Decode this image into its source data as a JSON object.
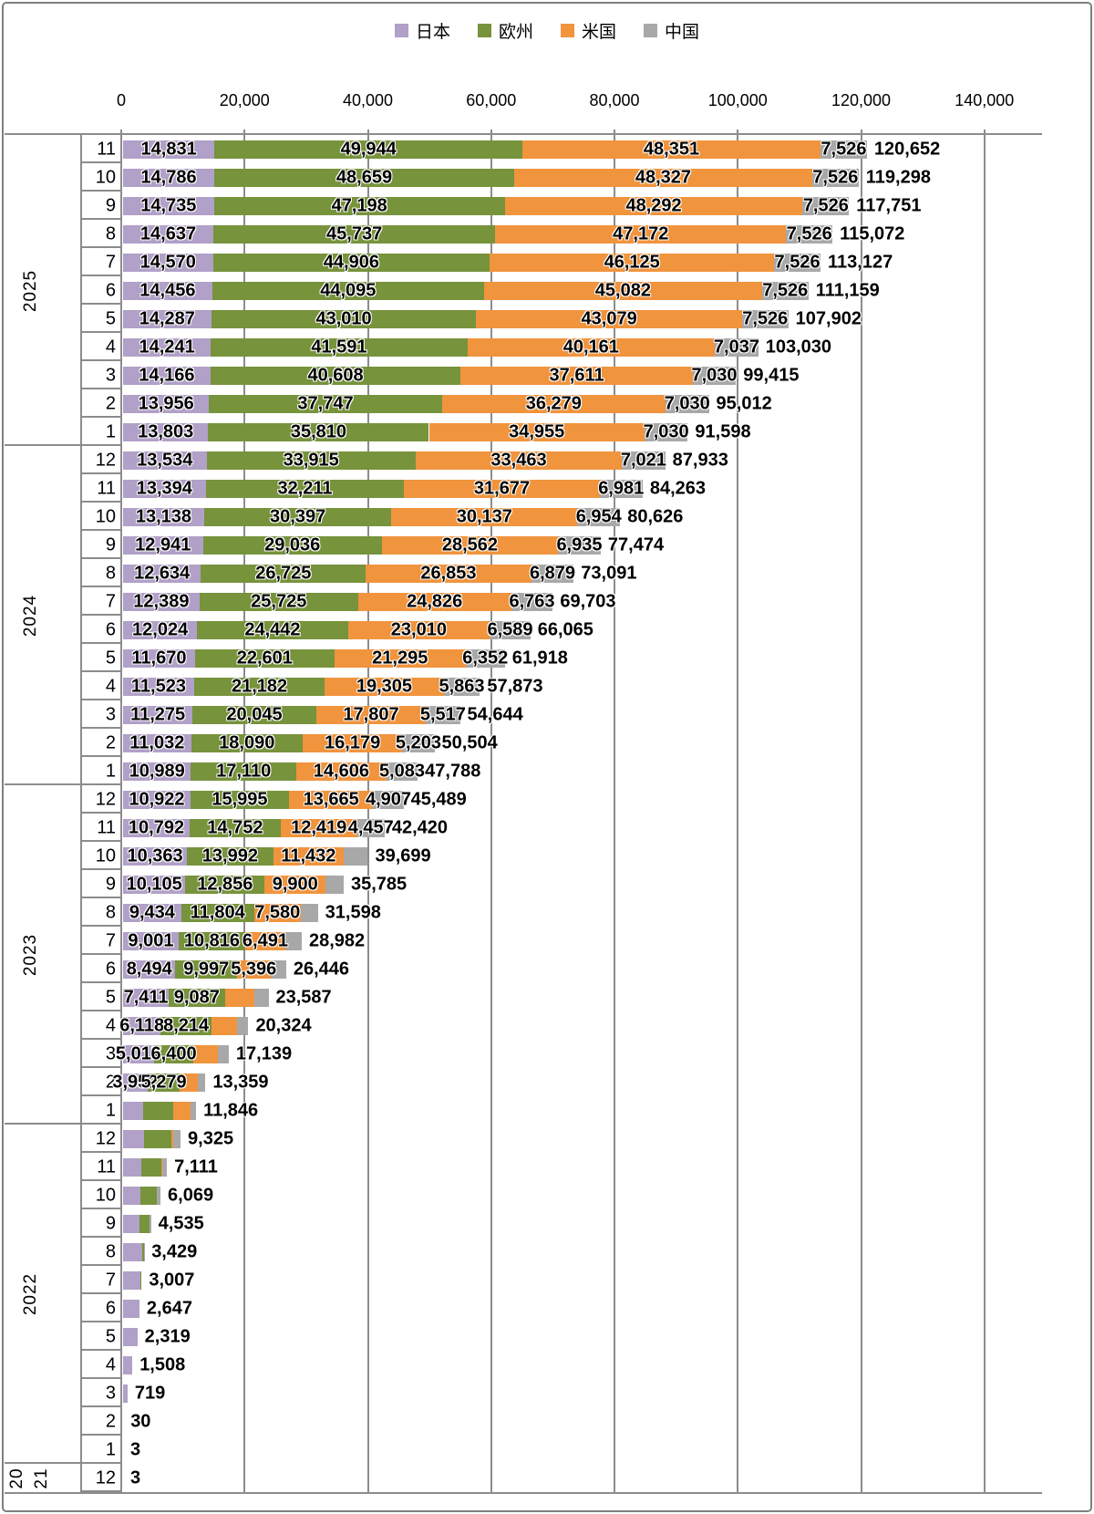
{
  "page": {
    "background": "#ffffff",
    "border_color": "#7f7f7f"
  },
  "legend": {
    "items": [
      {
        "label": "日本",
        "color": "#b1a0c7"
      },
      {
        "label": "欧州",
        "color": "#77933c"
      },
      {
        "label": "米国",
        "color": "#f0943e"
      },
      {
        "label": "中国",
        "color": "#a9a8a8"
      }
    ]
  },
  "chart_data": {
    "type": "bar",
    "stacked": true,
    "orientation": "horizontal",
    "title": "",
    "legend_position": "top",
    "grid": true,
    "xlim": [
      0,
      140000
    ],
    "x_ticks": [
      "0",
      "20,000",
      "40,000",
      "60,000",
      "80,000",
      "100,000",
      "120,000",
      "140,000"
    ],
    "series_names": [
      "日本",
      "欧州",
      "米国",
      "中国"
    ],
    "series_colors": [
      "#b1a0c7",
      "#77933c",
      "#f0943e",
      "#a9a8a8"
    ],
    "groups": [
      {
        "year": "2025",
        "year_label_parts": [
          "2025"
        ],
        "rows": [
          {
            "month": "11",
            "values": [
              14831,
              49944,
              48351,
              7526
            ],
            "segment_labels": [
              "14,831",
              "49,944",
              "48,351",
              "7,526"
            ],
            "total_label": "120,652"
          },
          {
            "month": "10",
            "values": [
              14786,
              48659,
              48327,
              7526
            ],
            "segment_labels": [
              "14,786",
              "48,659",
              "48,327",
              "7,526"
            ],
            "total_label": "119,298"
          },
          {
            "month": "9",
            "values": [
              14735,
              47198,
              48292,
              7526
            ],
            "segment_labels": [
              "14,735",
              "47,198",
              "48,292",
              "7,526"
            ],
            "total_label": "117,751"
          },
          {
            "month": "8",
            "values": [
              14637,
              45737,
              47172,
              7526
            ],
            "segment_labels": [
              "14,637",
              "45,737",
              "47,172",
              "7,526"
            ],
            "total_label": "115,072"
          },
          {
            "month": "7",
            "values": [
              14570,
              44906,
              46125,
              7526
            ],
            "segment_labels": [
              "14,570",
              "44,906",
              "46,125",
              "7,526"
            ],
            "total_label": "113,127"
          },
          {
            "month": "6",
            "values": [
              14456,
              44095,
              45082,
              7526
            ],
            "segment_labels": [
              "14,456",
              "44,095",
              "45,082",
              "7,526"
            ],
            "total_label": "111,159"
          },
          {
            "month": "5",
            "values": [
              14287,
              43010,
              43079,
              7526
            ],
            "segment_labels": [
              "14,287",
              "43,010",
              "43,079",
              "7,526"
            ],
            "total_label": "107,902"
          },
          {
            "month": "4",
            "values": [
              14241,
              41591,
              40161,
              7037
            ],
            "segment_labels": [
              "14,241",
              "41,591",
              "40,161",
              "7,037"
            ],
            "total_label": "103,030"
          },
          {
            "month": "3",
            "values": [
              14166,
              40608,
              37611,
              7030
            ],
            "segment_labels": [
              "14,166",
              "40,608",
              "37,611",
              "7,030"
            ],
            "total_label": "99,415"
          },
          {
            "month": "2",
            "values": [
              13956,
              37747,
              36279,
              7030
            ],
            "segment_labels": [
              "13,956",
              "37,747",
              "36,279",
              "7,030"
            ],
            "total_label": "95,012"
          },
          {
            "month": "1",
            "values": [
              13803,
              35810,
              34955,
              7030
            ],
            "segment_labels": [
              "13,803",
              "35,810",
              "34,955",
              "7,030"
            ],
            "total_label": "91,598"
          }
        ]
      },
      {
        "year": "2024",
        "year_label_parts": [
          "2024"
        ],
        "rows": [
          {
            "month": "12",
            "values": [
              13534,
              33915,
              33463,
              7021
            ],
            "segment_labels": [
              "13,534",
              "33,915",
              "33,463",
              "7,021"
            ],
            "total_label": "87,933"
          },
          {
            "month": "11",
            "values": [
              13394,
              32211,
              31677,
              6981
            ],
            "segment_labels": [
              "13,394",
              "32,211",
              "31,677",
              "6,981"
            ],
            "total_label": "84,263"
          },
          {
            "month": "10",
            "values": [
              13138,
              30397,
              30137,
              6954
            ],
            "segment_labels": [
              "13,138",
              "30,397",
              "30,137",
              "6,954"
            ],
            "total_label": "80,626"
          },
          {
            "month": "9",
            "values": [
              12941,
              29036,
              28562,
              6935
            ],
            "segment_labels": [
              "12,941",
              "29,036",
              "28,562",
              "6,935"
            ],
            "total_label": "77,474"
          },
          {
            "month": "8",
            "values": [
              12634,
              26725,
              26853,
              6879
            ],
            "segment_labels": [
              "12,634",
              "26,725",
              "26,853",
              "6,879"
            ],
            "total_label": "73,091"
          },
          {
            "month": "7",
            "values": [
              12389,
              25725,
              24826,
              6763
            ],
            "segment_labels": [
              "12,389",
              "25,725",
              "24,826",
              "6,763"
            ],
            "total_label": "69,703"
          },
          {
            "month": "6",
            "values": [
              12024,
              24442,
              23010,
              6589
            ],
            "segment_labels": [
              "12,024",
              "24,442",
              "23,010",
              "6,589"
            ],
            "total_label": "66,065"
          },
          {
            "month": "5",
            "values": [
              11670,
              22601,
              21295,
              6352
            ],
            "segment_labels": [
              "11,670",
              "22,601",
              "21,295",
              "6,352"
            ],
            "total_label": "61,918"
          },
          {
            "month": "4",
            "values": [
              11523,
              21182,
              19305,
              5863
            ],
            "segment_labels": [
              "11,523",
              "21,182",
              "19,305",
              "5,863"
            ],
            "total_label": "57,873"
          },
          {
            "month": "3",
            "values": [
              11275,
              20045,
              17807,
              5517
            ],
            "segment_labels": [
              "11,275",
              "20,045",
              "17,807",
              "5,517"
            ],
            "total_label": "54,644"
          },
          {
            "month": "2",
            "values": [
              11032,
              18090,
              16179,
              5203
            ],
            "segment_labels": [
              "11,032",
              "18,090",
              "16,179",
              "5,203"
            ],
            "total_label": "50,504"
          },
          {
            "month": "1",
            "values": [
              10989,
              17110,
              14606,
              5083
            ],
            "segment_labels": [
              "10,989",
              "17,110",
              "14,606",
              "5,083"
            ],
            "total_label": "47,788"
          }
        ]
      },
      {
        "year": "2023",
        "year_label_parts": [
          "2023"
        ],
        "rows": [
          {
            "month": "12",
            "values": [
              10922,
              15995,
              13665,
              4907
            ],
            "segment_labels": [
              "10,922",
              "15,995",
              "13,665",
              "4,907"
            ],
            "total_label": "45,489"
          },
          {
            "month": "11",
            "values": [
              10792,
              14752,
              12419,
              4457
            ],
            "segment_labels": [
              "10,792",
              "14,752",
              "12,419",
              "4,457"
            ],
            "total_label": "42,420"
          },
          {
            "month": "10",
            "values": [
              10363,
              13992,
              11432,
              3912
            ],
            "segment_labels": [
              "10,363",
              "13,992",
              "11,432",
              ""
            ],
            "total_label": "39,699"
          },
          {
            "month": "9",
            "values": [
              10105,
              12856,
              9900,
              2924
            ],
            "segment_labels": [
              "10,105",
              "12,856",
              "9,900",
              ""
            ],
            "total_label": "35,785"
          },
          {
            "month": "8",
            "values": [
              9434,
              11804,
              7580,
              2780
            ],
            "segment_labels": [
              "9,434",
              "11,804",
              "7,580",
              ""
            ],
            "total_label": "31,598"
          },
          {
            "month": "7",
            "values": [
              9001,
              10816,
              6491,
              2674
            ],
            "segment_labels": [
              "9,001",
              "10,816",
              "6,491",
              ""
            ],
            "total_label": "28,982"
          },
          {
            "month": "6",
            "values": [
              8494,
              9997,
              5396,
              2559
            ],
            "segment_labels": [
              "8,494",
              "9,997",
              "5,396",
              ""
            ],
            "total_label": "26,446"
          },
          {
            "month": "5",
            "values": [
              7411,
              9087,
              4789,
              2300
            ],
            "segment_labels": [
              "7,411",
              "9,087",
              "",
              ""
            ],
            "total_label": "23,587"
          },
          {
            "month": "4",
            "values": [
              6118,
              8214,
              4100,
              1892
            ],
            "segment_labels": [
              "6,118",
              "8,214",
              "",
              ""
            ],
            "total_label": "20,324"
          },
          {
            "month": "3",
            "values": [
              5017,
              6400,
              3900,
              1822
            ],
            "segment_labels": [
              "5,017",
              "6,400",
              "",
              ""
            ],
            "total_label": "17,139"
          },
          {
            "month": "2",
            "values": [
              3952,
              5279,
              2900,
              1228
            ],
            "segment_labels": [
              "3,952",
              "5,279",
              "",
              ""
            ],
            "total_label": "13,359"
          },
          {
            "month": "1",
            "values": [
              3300,
              4900,
              2700,
              946
            ],
            "segment_labels": [
              "",
              "",
              "",
              ""
            ],
            "total_label": "11,846"
          }
        ]
      },
      {
        "year": "2022",
        "year_label_parts": [
          "2022"
        ],
        "rows": [
          {
            "month": "12",
            "values": [
              3400,
              4400,
              400,
              1125
            ],
            "segment_labels": [
              "",
              "",
              "",
              ""
            ],
            "total_label": "9,325"
          },
          {
            "month": "11",
            "values": [
              3000,
              3200,
              150,
              761
            ],
            "segment_labels": [
              "",
              "",
              "",
              ""
            ],
            "total_label": "7,111"
          },
          {
            "month": "10",
            "values": [
              2800,
              2600,
              100,
              569
            ],
            "segment_labels": [
              "",
              "",
              "",
              ""
            ],
            "total_label": "6,069"
          },
          {
            "month": "9",
            "values": [
              2700,
              1550,
              50,
              235
            ],
            "segment_labels": [
              "",
              "",
              "",
              ""
            ],
            "total_label": "4,535"
          },
          {
            "month": "8",
            "values": [
              3150,
              200,
              0,
              79
            ],
            "segment_labels": [
              "",
              "",
              "",
              ""
            ],
            "total_label": "3,429"
          },
          {
            "month": "7",
            "values": [
              2850,
              120,
              0,
              37
            ],
            "segment_labels": [
              "",
              "",
              "",
              ""
            ],
            "total_label": "3,007"
          },
          {
            "month": "6",
            "values": [
              2600,
              47,
              0,
              0
            ],
            "segment_labels": [
              "",
              "",
              "",
              ""
            ],
            "total_label": "2,647"
          },
          {
            "month": "5",
            "values": [
              2319,
              0,
              0,
              0
            ],
            "segment_labels": [
              "",
              "",
              "",
              ""
            ],
            "total_label": "2,319"
          },
          {
            "month": "4",
            "values": [
              1508,
              0,
              0,
              0
            ],
            "segment_labels": [
              "",
              "",
              "",
              ""
            ],
            "total_label": "1,508"
          },
          {
            "month": "3",
            "values": [
              719,
              0,
              0,
              0
            ],
            "segment_labels": [
              "",
              "",
              "",
              ""
            ],
            "total_label": "719"
          },
          {
            "month": "2",
            "values": [
              30,
              0,
              0,
              0
            ],
            "segment_labels": [
              "",
              "",
              "",
              ""
            ],
            "total_label": "30"
          },
          {
            "month": "1",
            "values": [
              3,
              0,
              0,
              0
            ],
            "segment_labels": [
              "",
              "",
              "",
              ""
            ],
            "total_label": "3"
          }
        ]
      },
      {
        "year": "2021",
        "year_label_parts": [
          "20",
          "21"
        ],
        "rows": [
          {
            "month": "12",
            "values": [
              3,
              0,
              0,
              0
            ],
            "segment_labels": [
              "",
              "",
              "",
              ""
            ],
            "total_label": "3"
          }
        ]
      }
    ]
  }
}
